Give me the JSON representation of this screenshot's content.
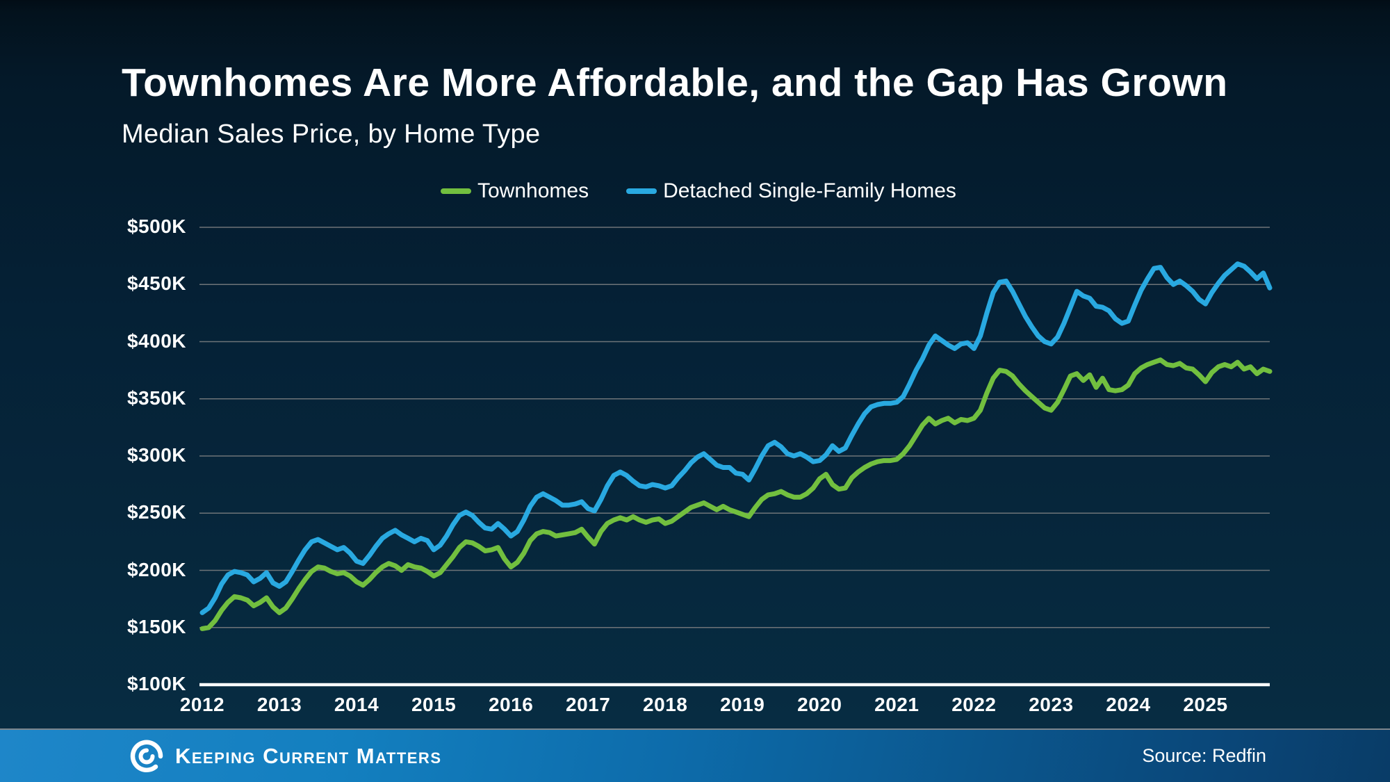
{
  "header": {
    "title": "Townhomes Are More Affordable, and the Gap Has Grown",
    "subtitle": "Median Sales Price, by Home Type"
  },
  "legend": [
    {
      "label": "Townhomes",
      "color": "#72bf3f"
    },
    {
      "label": "Detached Single-Family Homes",
      "color": "#29a9e1"
    }
  ],
  "footer": {
    "brand": "Keeping Current Matters",
    "source": "Source: Redfin",
    "logo_icon": "kcm-swirl",
    "bar_color_left": "#1e86c9",
    "bar_color_right": "#093c67"
  },
  "colors": {
    "background_top": "#03121d",
    "background_bottom": "#082e45",
    "gridline": "#6e7478",
    "axis_line": "#ffffff",
    "text": "#ffffff"
  },
  "chart_data": {
    "type": "line",
    "title": "Median Sales Price, by Home Type",
    "xlabel": "",
    "ylabel": "Median Sales Price",
    "unit": "USD thousands",
    "frequency": "monthly",
    "x_start": "2012-01",
    "x_end": "2025-11",
    "ylim": [
      100,
      500
    ],
    "grid": true,
    "legend_position": "top-center",
    "y_ticks": [
      {
        "value": 500,
        "label": "$500K"
      },
      {
        "value": 450,
        "label": "$450K"
      },
      {
        "value": 400,
        "label": "$400K"
      },
      {
        "value": 350,
        "label": "$350K"
      },
      {
        "value": 300,
        "label": "$300K"
      },
      {
        "value": 250,
        "label": "$250K"
      },
      {
        "value": 200,
        "label": "$200K"
      },
      {
        "value": 150,
        "label": "$150K"
      },
      {
        "value": 100,
        "label": "$100K"
      }
    ],
    "x_ticks": [
      "2012",
      "2013",
      "2014",
      "2015",
      "2016",
      "2017",
      "2018",
      "2019",
      "2020",
      "2021",
      "2022",
      "2023",
      "2024",
      "2025"
    ],
    "series": [
      {
        "name": "Townhomes",
        "color": "#72bf3f",
        "values": [
          149,
          150,
          156,
          165,
          172,
          177,
          176,
          174,
          169,
          172,
          176,
          168,
          163,
          167,
          175,
          184,
          192,
          199,
          203,
          202,
          199,
          197,
          198,
          195,
          190,
          187,
          192,
          198,
          203,
          206,
          204,
          200,
          205,
          203,
          202,
          199,
          195,
          198,
          205,
          212,
          220,
          225,
          224,
          221,
          217,
          218,
          220,
          210,
          203,
          207,
          215,
          226,
          232,
          234,
          233,
          230,
          231,
          232,
          233,
          236,
          229,
          223,
          234,
          241,
          244,
          246,
          244,
          247,
          244,
          242,
          244,
          245,
          241,
          243,
          247,
          251,
          255,
          257,
          259,
          256,
          253,
          256,
          253,
          251,
          249,
          247,
          255,
          262,
          266,
          267,
          269,
          266,
          264,
          264,
          267,
          272,
          280,
          284,
          275,
          271,
          272,
          281,
          286,
          290,
          293,
          295,
          296,
          296,
          297,
          302,
          309,
          318,
          327,
          333,
          328,
          331,
          333,
          329,
          332,
          331,
          333,
          340,
          355,
          368,
          375,
          374,
          370,
          363,
          357,
          352,
          347,
          342,
          340,
          347,
          358,
          370,
          372,
          366,
          371,
          360,
          368,
          358,
          357,
          358,
          362,
          372,
          377,
          380,
          382,
          384,
          380,
          379,
          381,
          377,
          376,
          371,
          365,
          373,
          378,
          380,
          378,
          382,
          376,
          378,
          372,
          376,
          374
        ]
      },
      {
        "name": "Detached Single-Family Homes",
        "color": "#29a9e1",
        "values": [
          163,
          167,
          176,
          188,
          196,
          199,
          198,
          196,
          190,
          193,
          198,
          189,
          186,
          190,
          199,
          209,
          218,
          225,
          227,
          224,
          221,
          218,
          220,
          215,
          208,
          206,
          213,
          221,
          228,
          232,
          235,
          231,
          228,
          225,
          228,
          226,
          218,
          222,
          230,
          240,
          248,
          251,
          248,
          242,
          237,
          236,
          241,
          236,
          230,
          234,
          244,
          256,
          264,
          267,
          264,
          261,
          257,
          257,
          258,
          260,
          254,
          252,
          262,
          274,
          283,
          286,
          283,
          278,
          274,
          273,
          275,
          274,
          272,
          274,
          281,
          287,
          294,
          299,
          302,
          297,
          292,
          290,
          290,
          285,
          284,
          279,
          289,
          300,
          309,
          312,
          308,
          302,
          300,
          302,
          299,
          295,
          296,
          301,
          309,
          304,
          307,
          318,
          328,
          337,
          343,
          345,
          346,
          346,
          347,
          352,
          363,
          375,
          385,
          397,
          405,
          401,
          397,
          394,
          398,
          399,
          394,
          405,
          425,
          443,
          452,
          453,
          444,
          433,
          422,
          413,
          405,
          400,
          398,
          404,
          416,
          430,
          444,
          440,
          438,
          431,
          430,
          427,
          420,
          416,
          418,
          432,
          445,
          455,
          464,
          465,
          456,
          450,
          453,
          449,
          444,
          437,
          433,
          443,
          451,
          458,
          463,
          468,
          466,
          461,
          455,
          460,
          447
        ]
      }
    ]
  }
}
